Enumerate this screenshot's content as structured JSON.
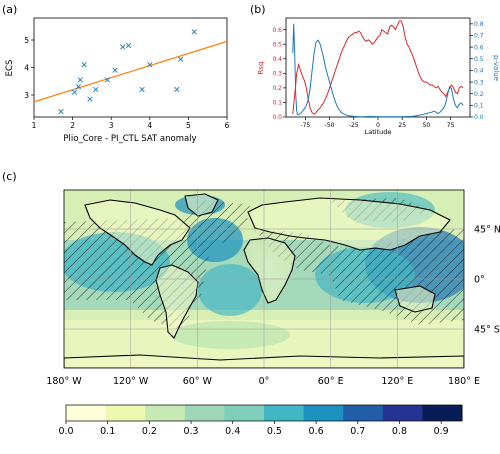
{
  "panel_labels": {
    "a": "(a)",
    "b": "(b)",
    "c": "(c)"
  },
  "chart_data": [
    {
      "type": "scatter",
      "panel": "a",
      "xlabel": "Plio_Core - PI_CTL SAT anomaly",
      "ylabel": "ECS",
      "xlim": [
        1,
        6
      ],
      "ylim": [
        2.2,
        5.8
      ],
      "xticks": [
        1,
        2,
        3,
        4,
        5,
        6
      ],
      "yticks": [
        3,
        4,
        5
      ],
      "marker": "x",
      "marker_color": "#1f77b4",
      "fit_color": "#ff7f0e",
      "points": [
        {
          "x": 1.7,
          "y": 2.4
        },
        {
          "x": 2.05,
          "y": 3.1
        },
        {
          "x": 2.15,
          "y": 3.3
        },
        {
          "x": 2.2,
          "y": 3.55
        },
        {
          "x": 2.3,
          "y": 4.1
        },
        {
          "x": 2.45,
          "y": 2.85
        },
        {
          "x": 2.6,
          "y": 3.2
        },
        {
          "x": 2.9,
          "y": 3.55
        },
        {
          "x": 3.1,
          "y": 3.9
        },
        {
          "x": 3.3,
          "y": 4.75
        },
        {
          "x": 3.45,
          "y": 4.8
        },
        {
          "x": 3.8,
          "y": 3.2
        },
        {
          "x": 4.0,
          "y": 4.1
        },
        {
          "x": 4.7,
          "y": 3.2
        },
        {
          "x": 4.8,
          "y": 4.3
        },
        {
          "x": 5.15,
          "y": 5.3
        }
      ],
      "fit_line": {
        "x": [
          1,
          6
        ],
        "y": [
          2.75,
          4.95
        ]
      },
      "grid": false
    },
    {
      "type": "line",
      "panel": "b",
      "xlabel": "Latitude",
      "ylabel_left": "Rsq",
      "ylabel_right": "p-value",
      "xlim": [
        -95,
        95
      ],
      "xticks": [
        -75,
        -50,
        -25,
        0,
        25,
        50,
        75
      ],
      "ylim_left": [
        0,
        0.68
      ],
      "yticks_left": [
        0.0,
        0.1,
        0.2,
        0.3,
        0.4,
        0.5,
        0.6
      ],
      "ylim_right": [
        0,
        0.85
      ],
      "yticks_right": [
        0.0,
        0.1,
        0.2,
        0.3,
        0.4,
        0.5,
        0.6,
        0.7,
        0.8
      ],
      "series": [
        {
          "axis": "left",
          "color": "#d62728",
          "x": [
            -88,
            -86,
            -84,
            -82,
            -80,
            -78,
            -76,
            -74,
            -72,
            -70,
            -68,
            -66,
            -64,
            -62,
            -60,
            -58,
            -56,
            -54,
            -52,
            -50,
            -48,
            -46,
            -44,
            -42,
            -40,
            -38,
            -36,
            -34,
            -32,
            -30,
            -28,
            -26,
            -24,
            -22,
            -20,
            -18,
            -16,
            -14,
            -12,
            -10,
            -8,
            -6,
            -4,
            -2,
            0,
            2,
            4,
            6,
            8,
            10,
            12,
            14,
            16,
            18,
            20,
            22,
            24,
            26,
            28,
            30,
            32,
            34,
            36,
            38,
            40,
            42,
            44,
            46,
            48,
            50,
            52,
            54,
            56,
            58,
            60,
            62,
            64,
            66,
            68,
            70,
            72,
            74,
            76,
            78,
            80,
            82,
            84,
            86,
            88
          ],
          "y": [
            0.02,
            0.15,
            0.3,
            0.36,
            0.32,
            0.28,
            0.25,
            0.2,
            0.12,
            0.06,
            0.03,
            0.02,
            0.03,
            0.05,
            0.06,
            0.08,
            0.1,
            0.13,
            0.16,
            0.2,
            0.24,
            0.28,
            0.32,
            0.36,
            0.4,
            0.44,
            0.47,
            0.5,
            0.53,
            0.55,
            0.56,
            0.57,
            0.58,
            0.58,
            0.59,
            0.58,
            0.55,
            0.53,
            0.52,
            0.53,
            0.52,
            0.5,
            0.51,
            0.53,
            0.55,
            0.56,
            0.6,
            0.59,
            0.58,
            0.57,
            0.62,
            0.63,
            0.62,
            0.6,
            0.63,
            0.66,
            0.66,
            0.62,
            0.55,
            0.5,
            0.48,
            0.45,
            0.42,
            0.38,
            0.34,
            0.3,
            0.27,
            0.25,
            0.24,
            0.24,
            0.23,
            0.22,
            0.22,
            0.21,
            0.2,
            0.21,
            0.19,
            0.17,
            0.16,
            0.14,
            0.17,
            0.2,
            0.22,
            0.2,
            0.17,
            0.16,
            0.2,
            0.21,
            0.2
          ]
        },
        {
          "axis": "right",
          "color": "#1f77b4",
          "x": [
            -88,
            -87,
            -86,
            -85,
            -84,
            -83,
            -82,
            -80,
            -78,
            -76,
            -74,
            -72,
            -70,
            -68,
            -66,
            -64,
            -62,
            -60,
            -58,
            -56,
            -54,
            -52,
            -50,
            -48,
            -46,
            -44,
            -42,
            -40,
            -38,
            -36,
            -34,
            -32,
            -30,
            -25,
            -20,
            -15,
            -10,
            -5,
            0,
            5,
            10,
            15,
            20,
            25,
            30,
            35,
            40,
            45,
            50,
            55,
            58,
            60,
            62,
            64,
            66,
            68,
            70,
            72,
            74,
            76,
            78,
            80,
            82,
            84,
            86,
            88
          ],
          "y": [
            0.55,
            0.8,
            0.55,
            0.2,
            0.05,
            0.02,
            0.02,
            0.03,
            0.05,
            0.07,
            0.1,
            0.15,
            0.25,
            0.4,
            0.55,
            0.64,
            0.66,
            0.63,
            0.57,
            0.5,
            0.42,
            0.36,
            0.3,
            0.24,
            0.18,
            0.13,
            0.09,
            0.06,
            0.04,
            0.03,
            0.02,
            0.015,
            0.01,
            0.005,
            0.003,
            0.003,
            0.005,
            0.004,
            0.003,
            0.002,
            0.002,
            0.002,
            0.002,
            0.003,
            0.004,
            0.005,
            0.01,
            0.02,
            0.03,
            0.04,
            0.05,
            0.04,
            0.03,
            0.04,
            0.06,
            0.08,
            0.12,
            0.2,
            0.26,
            0.24,
            0.15,
            0.1,
            0.08,
            0.11,
            0.12,
            0.1
          ]
        }
      ]
    },
    {
      "type": "heatmap",
      "panel": "c",
      "projection": "equirectangular",
      "lon_ticks": [
        "180° W",
        "120° W",
        "60° W",
        "0°",
        "60° E",
        "120° E",
        "180° E"
      ],
      "lat_ticks": [
        "45° N",
        "0°",
        "45° S"
      ],
      "colorbar_ticks": [
        "0.0",
        "0.1",
        "0.2",
        "0.3",
        "0.4",
        "0.5",
        "0.6",
        "0.7",
        "0.8",
        "0.9"
      ],
      "colormap": [
        "#ffffd9",
        "#edf8b1",
        "#c7e9b4",
        "#9dd7b8",
        "#7fcdbb",
        "#41b6c4",
        "#1d91c0",
        "#225ea8",
        "#253494",
        "#081d58"
      ],
      "clim": [
        0,
        0.95
      ],
      "hatched_significance": true,
      "grid": true
    }
  ]
}
